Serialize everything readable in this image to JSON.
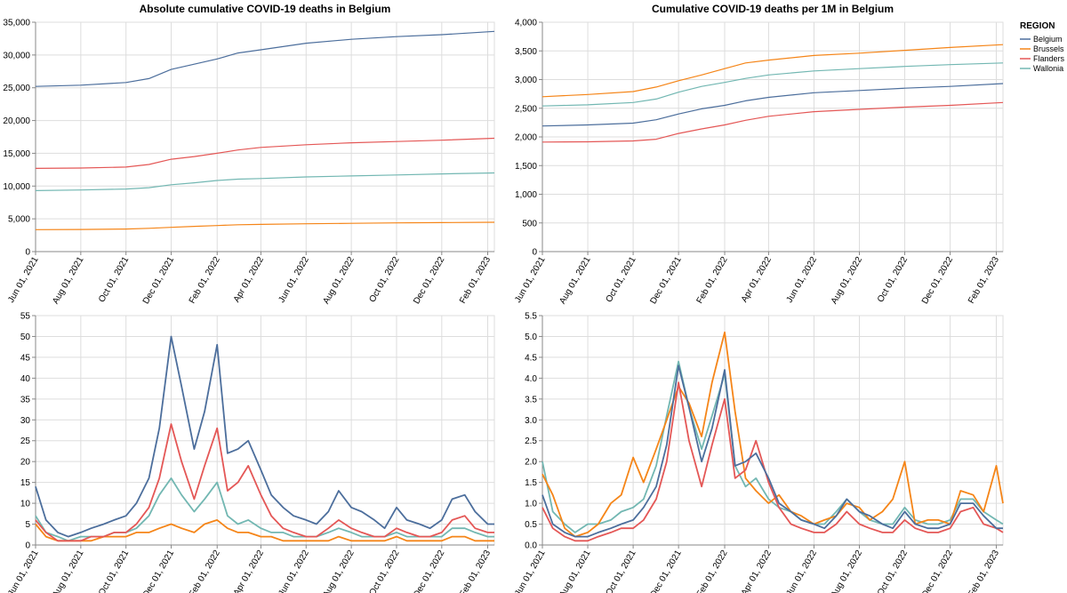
{
  "legend": {
    "title": "REGION",
    "items": [
      {
        "name": "Belgium",
        "color": "#4c6e9c"
      },
      {
        "name": "Brussels",
        "color": "#f58518"
      },
      {
        "name": "Flanders",
        "color": "#e45756"
      },
      {
        "name": "Wallonia",
        "color": "#72b7b2"
      }
    ]
  },
  "chart_data": [
    {
      "id": "abs-cumulative",
      "type": "line",
      "title": "Absolute cumulative COVID-19 deaths in Belgium",
      "xlabel": "",
      "ylabel": "",
      "x_ticks": [
        "Jun 01, 2021",
        "Aug 01, 2021",
        "Oct 01, 2021",
        "Dec 01, 2021",
        "Feb 01, 2022",
        "Apr 01, 2022",
        "Jun 01, 2022",
        "Aug 01, 2022",
        "Oct 01, 2022",
        "Dec 01, 2022",
        "Feb 01, 2023"
      ],
      "xlim": [
        "2021-06-01",
        "2023-02-10"
      ],
      "ylim": [
        0,
        35000
      ],
      "y_ticks": [
        "0",
        "5,000",
        "10,000",
        "15,000",
        "20,000",
        "25,000",
        "30,000",
        "35,000"
      ],
      "grid": true,
      "x": [
        "2021-06-01",
        "2021-08-01",
        "2021-10-01",
        "2021-11-01",
        "2021-12-01",
        "2022-01-01",
        "2022-02-01",
        "2022-03-01",
        "2022-04-01",
        "2022-06-01",
        "2022-08-01",
        "2022-10-01",
        "2022-12-01",
        "2023-02-10"
      ],
      "series": [
        {
          "name": "Belgium",
          "values": [
            25200,
            25400,
            25800,
            26400,
            27800,
            28600,
            29400,
            30300,
            30800,
            31800,
            32400,
            32800,
            33100,
            33600
          ]
        },
        {
          "name": "Brussels",
          "values": [
            3350,
            3380,
            3450,
            3550,
            3700,
            3850,
            3980,
            4100,
            4150,
            4250,
            4320,
            4380,
            4420,
            4480
          ]
        },
        {
          "name": "Flanders",
          "values": [
            12700,
            12750,
            12900,
            13300,
            14100,
            14500,
            15000,
            15500,
            15900,
            16300,
            16600,
            16800,
            17000,
            17300
          ]
        },
        {
          "name": "Wallonia",
          "values": [
            9300,
            9400,
            9550,
            9750,
            10200,
            10500,
            10850,
            11050,
            11150,
            11400,
            11550,
            11700,
            11850,
            12000
          ]
        }
      ]
    },
    {
      "id": "per-million-cumulative",
      "type": "line",
      "title": "Cumulative COVID-19 deaths per 1M in Belgium",
      "xlabel": "",
      "ylabel": "",
      "x_ticks": [
        "Jun 01, 2021",
        "Aug 01, 2021",
        "Oct 01, 2021",
        "Dec 01, 2021",
        "Feb 01, 2022",
        "Apr 01, 2022",
        "Jun 01, 2022",
        "Aug 01, 2022",
        "Oct 01, 2022",
        "Dec 01, 2022",
        "Feb 01, 2023"
      ],
      "xlim": [
        "2021-06-01",
        "2023-02-10"
      ],
      "ylim": [
        0,
        4000
      ],
      "y_ticks": [
        "0",
        "500",
        "1,000",
        "1,500",
        "2,000",
        "2,500",
        "3,000",
        "3,500",
        "4,000"
      ],
      "grid": true,
      "x": [
        "2021-06-01",
        "2021-08-01",
        "2021-10-01",
        "2021-11-01",
        "2021-12-01",
        "2022-01-01",
        "2022-02-01",
        "2022-03-01",
        "2022-04-01",
        "2022-06-01",
        "2022-08-01",
        "2022-10-01",
        "2022-12-01",
        "2023-02-10"
      ],
      "series": [
        {
          "name": "Belgium",
          "values": [
            2190,
            2210,
            2240,
            2300,
            2400,
            2490,
            2550,
            2630,
            2690,
            2770,
            2810,
            2850,
            2880,
            2930
          ]
        },
        {
          "name": "Brussels",
          "values": [
            2700,
            2740,
            2790,
            2870,
            2980,
            3080,
            3190,
            3290,
            3340,
            3420,
            3460,
            3510,
            3560,
            3610
          ]
        },
        {
          "name": "Flanders",
          "values": [
            1910,
            1915,
            1930,
            1960,
            2060,
            2140,
            2210,
            2290,
            2360,
            2440,
            2480,
            2520,
            2550,
            2600
          ]
        },
        {
          "name": "Wallonia",
          "values": [
            2540,
            2560,
            2600,
            2660,
            2780,
            2880,
            2950,
            3020,
            3080,
            3150,
            3190,
            3230,
            3260,
            3290
          ]
        }
      ]
    },
    {
      "id": "abs-daily",
      "type": "line",
      "title": "",
      "xlabel": "",
      "ylabel": "",
      "x_ticks": [
        "Jun 01, 2021",
        "Aug 01, 2021",
        "Oct 01, 2021",
        "Dec 01, 2021",
        "Feb 01, 2022",
        "Apr 01, 2022",
        "Jun 01, 2022",
        "Aug 01, 2022",
        "Oct 01, 2022",
        "Dec 01, 2022",
        "Feb 01, 2023"
      ],
      "xlim": [
        "2021-06-01",
        "2023-02-10"
      ],
      "ylim": [
        0,
        55
      ],
      "y_ticks": [
        "0",
        "5",
        "10",
        "15",
        "20",
        "25",
        "30",
        "35",
        "40",
        "45",
        "50",
        "55"
      ],
      "grid": true,
      "x": [
        "2021-06-01",
        "2021-06-15",
        "2021-07-01",
        "2021-07-15",
        "2021-08-01",
        "2021-08-15",
        "2021-09-01",
        "2021-09-15",
        "2021-10-01",
        "2021-10-15",
        "2021-11-01",
        "2021-11-15",
        "2021-12-01",
        "2021-12-15",
        "2022-01-01",
        "2022-01-15",
        "2022-02-01",
        "2022-02-15",
        "2022-03-01",
        "2022-03-15",
        "2022-04-01",
        "2022-04-15",
        "2022-05-01",
        "2022-05-15",
        "2022-06-01",
        "2022-06-15",
        "2022-07-01",
        "2022-07-15",
        "2022-08-01",
        "2022-08-15",
        "2022-09-01",
        "2022-09-15",
        "2022-10-01",
        "2022-10-15",
        "2022-11-01",
        "2022-11-15",
        "2022-12-01",
        "2022-12-15",
        "2023-01-01",
        "2023-01-15",
        "2023-02-01",
        "2023-02-10"
      ],
      "series": [
        {
          "name": "Belgium",
          "values": [
            14,
            6,
            3,
            2,
            3,
            4,
            5,
            6,
            7,
            10,
            16,
            28,
            50,
            38,
            23,
            32,
            48,
            22,
            23,
            25,
            18,
            12,
            9,
            7,
            6,
            5,
            8,
            13,
            9,
            8,
            6,
            4,
            9,
            6,
            5,
            4,
            6,
            11,
            12,
            8,
            5,
            5
          ]
        },
        {
          "name": "Brussels",
          "values": [
            5,
            2,
            1,
            1,
            1,
            1,
            2,
            2,
            2,
            3,
            3,
            4,
            5,
            4,
            3,
            5,
            6,
            4,
            3,
            3,
            2,
            2,
            1,
            1,
            1,
            1,
            1,
            2,
            1,
            1,
            1,
            1,
            2,
            1,
            1,
            1,
            1,
            2,
            2,
            1,
            1,
            1
          ]
        },
        {
          "name": "Flanders",
          "values": [
            6,
            3,
            1,
            1,
            1,
            2,
            2,
            3,
            3,
            5,
            9,
            16,
            29,
            20,
            11,
            19,
            28,
            13,
            15,
            19,
            12,
            7,
            4,
            3,
            2,
            2,
            4,
            6,
            4,
            3,
            2,
            2,
            4,
            3,
            2,
            2,
            3,
            6,
            7,
            4,
            3,
            3
          ]
        },
        {
          "name": "Wallonia",
          "values": [
            7,
            3,
            2,
            1,
            2,
            2,
            2,
            3,
            3,
            4,
            7,
            12,
            16,
            12,
            8,
            11,
            15,
            7,
            5,
            6,
            4,
            3,
            3,
            2,
            2,
            2,
            3,
            4,
            3,
            2,
            2,
            2,
            3,
            2,
            2,
            2,
            2,
            4,
            4,
            3,
            2,
            2
          ]
        }
      ]
    },
    {
      "id": "per-million-daily",
      "type": "line",
      "title": "",
      "xlabel": "",
      "ylabel": "",
      "x_ticks": [
        "Jun 01, 2021",
        "Aug 01, 2021",
        "Oct 01, 2021",
        "Dec 01, 2021",
        "Feb 01, 2022",
        "Apr 01, 2022",
        "Jun 01, 2022",
        "Aug 01, 2022",
        "Oct 01, 2022",
        "Dec 01, 2022",
        "Feb 01, 2023"
      ],
      "xlim": [
        "2021-06-01",
        "2023-02-10"
      ],
      "ylim": [
        0,
        5.5
      ],
      "y_ticks": [
        "0.0",
        "0.5",
        "1.0",
        "1.5",
        "2.0",
        "2.5",
        "3.0",
        "3.5",
        "4.0",
        "4.5",
        "5.0",
        "5.5"
      ],
      "grid": true,
      "x": [
        "2021-06-01",
        "2021-06-15",
        "2021-07-01",
        "2021-07-15",
        "2021-08-01",
        "2021-08-15",
        "2021-09-01",
        "2021-09-15",
        "2021-10-01",
        "2021-10-15",
        "2021-11-01",
        "2021-11-15",
        "2021-12-01",
        "2021-12-15",
        "2022-01-01",
        "2022-01-15",
        "2022-02-01",
        "2022-02-15",
        "2022-03-01",
        "2022-03-15",
        "2022-04-01",
        "2022-04-15",
        "2022-05-01",
        "2022-05-15",
        "2022-06-01",
        "2022-06-15",
        "2022-07-01",
        "2022-07-15",
        "2022-08-01",
        "2022-08-15",
        "2022-09-01",
        "2022-09-15",
        "2022-10-01",
        "2022-10-15",
        "2022-11-01",
        "2022-11-15",
        "2022-12-01",
        "2022-12-15",
        "2023-01-01",
        "2023-01-15",
        "2023-02-01",
        "2023-02-10"
      ],
      "series": [
        {
          "name": "Belgium",
          "values": [
            1.2,
            0.5,
            0.3,
            0.2,
            0.2,
            0.3,
            0.4,
            0.5,
            0.6,
            0.9,
            1.4,
            2.4,
            4.3,
            3.3,
            2.0,
            2.8,
            4.2,
            1.9,
            2.0,
            2.2,
            1.6,
            1.0,
            0.8,
            0.6,
            0.5,
            0.4,
            0.7,
            1.1,
            0.8,
            0.7,
            0.5,
            0.4,
            0.8,
            0.5,
            0.4,
            0.4,
            0.5,
            1.0,
            1.0,
            0.7,
            0.4,
            0.4
          ]
        },
        {
          "name": "Brussels",
          "values": [
            1.7,
            1.2,
            0.4,
            0.2,
            0.3,
            0.5,
            1.0,
            1.2,
            2.1,
            1.5,
            2.3,
            3.0,
            3.8,
            3.4,
            2.6,
            3.9,
            5.1,
            3.2,
            1.6,
            1.3,
            1.0,
            1.2,
            0.8,
            0.7,
            0.5,
            0.6,
            0.7,
            1.0,
            0.9,
            0.6,
            0.8,
            1.1,
            2.0,
            0.5,
            0.6,
            0.6,
            0.5,
            1.3,
            1.2,
            0.8,
            1.9,
            1.0
          ]
        },
        {
          "name": "Flanders",
          "values": [
            0.9,
            0.4,
            0.2,
            0.1,
            0.1,
            0.2,
            0.3,
            0.4,
            0.4,
            0.6,
            1.1,
            2.0,
            3.9,
            2.5,
            1.4,
            2.4,
            3.5,
            1.6,
            1.8,
            2.5,
            1.5,
            0.9,
            0.5,
            0.4,
            0.3,
            0.3,
            0.5,
            0.8,
            0.5,
            0.4,
            0.3,
            0.3,
            0.6,
            0.4,
            0.3,
            0.3,
            0.4,
            0.8,
            0.9,
            0.5,
            0.4,
            0.3
          ]
        },
        {
          "name": "Wallonia",
          "values": [
            2.0,
            0.8,
            0.5,
            0.3,
            0.5,
            0.5,
            0.6,
            0.8,
            0.9,
            1.1,
            1.9,
            3.1,
            4.4,
            3.3,
            2.3,
            3.1,
            4.1,
            1.9,
            1.4,
            1.6,
            1.1,
            0.9,
            0.8,
            0.6,
            0.5,
            0.5,
            0.8,
            1.1,
            0.8,
            0.6,
            0.5,
            0.5,
            0.9,
            0.6,
            0.5,
            0.5,
            0.6,
            1.1,
            1.1,
            0.8,
            0.6,
            0.5
          ]
        }
      ]
    }
  ]
}
